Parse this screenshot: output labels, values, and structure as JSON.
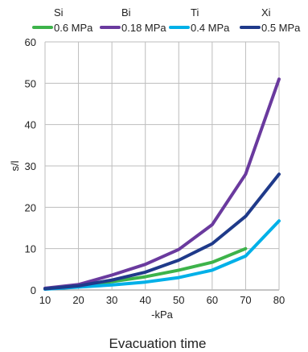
{
  "chart_data": {
    "type": "line",
    "x": [
      10,
      20,
      30,
      40,
      50,
      60,
      70,
      80
    ],
    "series": [
      {
        "name": "Si",
        "subtitle": "0.6 MPa",
        "color": "#3db34a",
        "values": [
          0.3,
          0.9,
          2.0,
          3.2,
          4.8,
          6.7,
          10.0,
          null
        ]
      },
      {
        "name": "Bi",
        "subtitle": "0.18 MPa",
        "color": "#6a3a9e",
        "values": [
          0.4,
          1.3,
          3.6,
          6.2,
          9.8,
          15.8,
          28.0,
          51.0
        ]
      },
      {
        "name": "Ti",
        "subtitle": "0.4 MPa",
        "color": "#00b0e8",
        "values": [
          0.2,
          0.7,
          1.2,
          1.9,
          3.0,
          4.8,
          8.2,
          16.7
        ]
      },
      {
        "name": "Xi",
        "subtitle": "0.5 MPa",
        "color": "#1f3a8a",
        "values": [
          0.3,
          1.0,
          2.4,
          4.3,
          7.2,
          11.2,
          17.8,
          28.0
        ]
      }
    ],
    "xlabel": "-kPa",
    "ylabel": "s/l",
    "caption": "Evacuation time",
    "xlim": [
      10,
      80
    ],
    "ylim": [
      0,
      60
    ],
    "xticks": [
      10,
      20,
      30,
      40,
      50,
      60,
      70,
      80
    ],
    "yticks": [
      0,
      10,
      20,
      30,
      40,
      50,
      60
    ],
    "grid": true,
    "legend_position": "top"
  }
}
